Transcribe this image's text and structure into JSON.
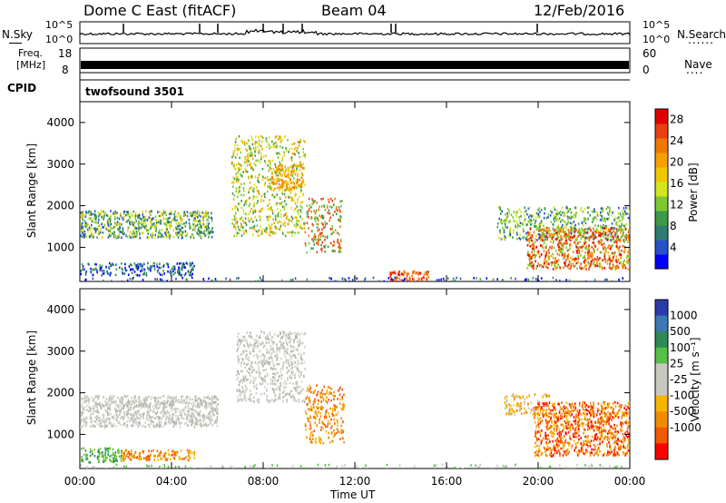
{
  "header": {
    "station": "Dome C East (fitACF)",
    "beam": "Beam 04",
    "date": "12/Feb/2016"
  },
  "strip": {
    "nsky_label": "N.Sky",
    "nsearch_label": "N.Search",
    "nsearch_dots": "......",
    "noise_ticks": [
      "10^5",
      "10^0"
    ],
    "freq_label": "Freq.",
    "freq_unit": "[MHz]",
    "freq_ticks": [
      "18",
      "8"
    ],
    "nave_label": "Nave",
    "nave_dots": "....",
    "nave_ticks": [
      "60",
      "0"
    ],
    "cpid_label": "CPID",
    "cpid_value": "twofsound 3501"
  },
  "chart_data": [
    {
      "type": "heatmap",
      "panel": "power",
      "xlabel": "",
      "ylabel": "Slant Range [km]",
      "x_ticks": [
        "00:00",
        "04:00",
        "08:00",
        "12:00",
        "16:00",
        "20:00",
        "00:00"
      ],
      "xlim_hours": [
        0,
        24
      ],
      "ylim_km": [
        180,
        4500
      ],
      "y_ticks": [
        1000,
        2000,
        3000,
        4000
      ],
      "colorbar": {
        "label": "Power [dB]",
        "ticks": [
          4,
          8,
          12,
          16,
          20,
          24,
          28
        ],
        "range": [
          0,
          30
        ],
        "colors": [
          "#0000ff",
          "#2850c8",
          "#2e7d6e",
          "#3a9a4a",
          "#7cc832",
          "#d2e61e",
          "#f0c800",
          "#f5a000",
          "#f07800",
          "#e84010",
          "#e00000"
        ]
      },
      "echo_regions": [
        {
          "t": [
            0,
            5.8
          ],
          "r": [
            1250,
            1900
          ],
          "value": "12-20 dB"
        },
        {
          "t": [
            0,
            5.0
          ],
          "r": [
            350,
            650
          ],
          "value": "4-12 dB"
        },
        {
          "t": [
            6.6,
            9.8
          ],
          "r": [
            1300,
            3700
          ],
          "value": "12-24 dB"
        },
        {
          "t": [
            13.5,
            15.0
          ],
          "r": [
            200,
            500
          ],
          "value": "24-28 dB"
        },
        {
          "t": [
            18.2,
            24
          ],
          "r": [
            500,
            2100
          ],
          "value": "12-28 dB"
        }
      ]
    },
    {
      "type": "heatmap",
      "panel": "velocity",
      "xlabel": "Time UT",
      "ylabel": "Slant Range [km]",
      "x_ticks": [
        "00:00",
        "04:00",
        "08:00",
        "12:00",
        "16:00",
        "20:00",
        "00:00"
      ],
      "xlim_hours": [
        0,
        24
      ],
      "ylim_km": [
        180,
        4500
      ],
      "y_ticks": [
        1000,
        2000,
        3000,
        4000
      ],
      "colorbar": {
        "label": "Velocity [m s⁻¹]",
        "ticks": [
          "1000",
          "500",
          "100",
          "25",
          "-25",
          "-100",
          "-500",
          "-1000"
        ],
        "colors": [
          "#2a3ca8",
          "#3c78b4",
          "#2f8a56",
          "#55c046",
          "#c8c8c0",
          "#c8c8c0",
          "#f5b400",
          "#f08c00",
          "#f05a00",
          "#ff0000"
        ]
      },
      "echo_regions": [
        {
          "t": [
            0,
            6.0
          ],
          "r": [
            1200,
            1950
          ],
          "value": "-25 to 25 m/s"
        },
        {
          "t": [
            0,
            5.0
          ],
          "r": [
            350,
            650
          ],
          "value": "25-100 m/s"
        },
        {
          "t": [
            7.0,
            9.8
          ],
          "r": [
            1800,
            3500
          ],
          "value": "-25 to 25 m/s"
        },
        {
          "t": [
            9.8,
            11.5
          ],
          "r": [
            800,
            2200
          ],
          "value": "-100 to -500 m/s"
        },
        {
          "t": [
            18.5,
            24
          ],
          "r": [
            500,
            1800
          ],
          "value": "-500 to -1000 m/s"
        }
      ]
    }
  ]
}
